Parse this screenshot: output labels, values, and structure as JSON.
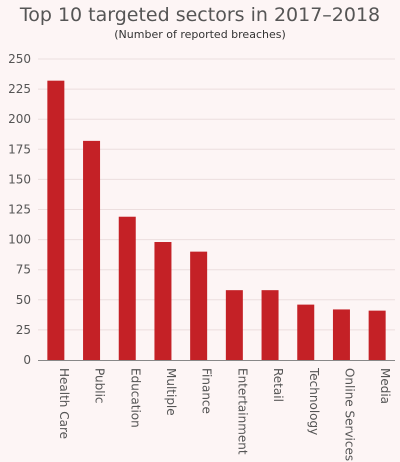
{
  "chart_data": {
    "type": "bar",
    "title": "Top 10 targeted sectors in 2017–2018",
    "subtitle": "(Number of reported breaches)",
    "categories": [
      "Health Care",
      "Public",
      "Education",
      "Multiple",
      "Finance",
      "Entertainment",
      "Retail",
      "Technology",
      "Online Services",
      "Media"
    ],
    "values": [
      232,
      182,
      119,
      98,
      90,
      58,
      58,
      46,
      42,
      41
    ],
    "ylim": [
      0,
      250
    ],
    "yticks": [
      "0",
      "25",
      "50",
      "75",
      "100",
      "125",
      "150",
      "175",
      "200",
      "225",
      "250"
    ],
    "grid": true,
    "colors": {
      "bar": "#c42126",
      "grid": "#ecdede",
      "axis": "#888888",
      "background": "#fdf5f5"
    }
  }
}
